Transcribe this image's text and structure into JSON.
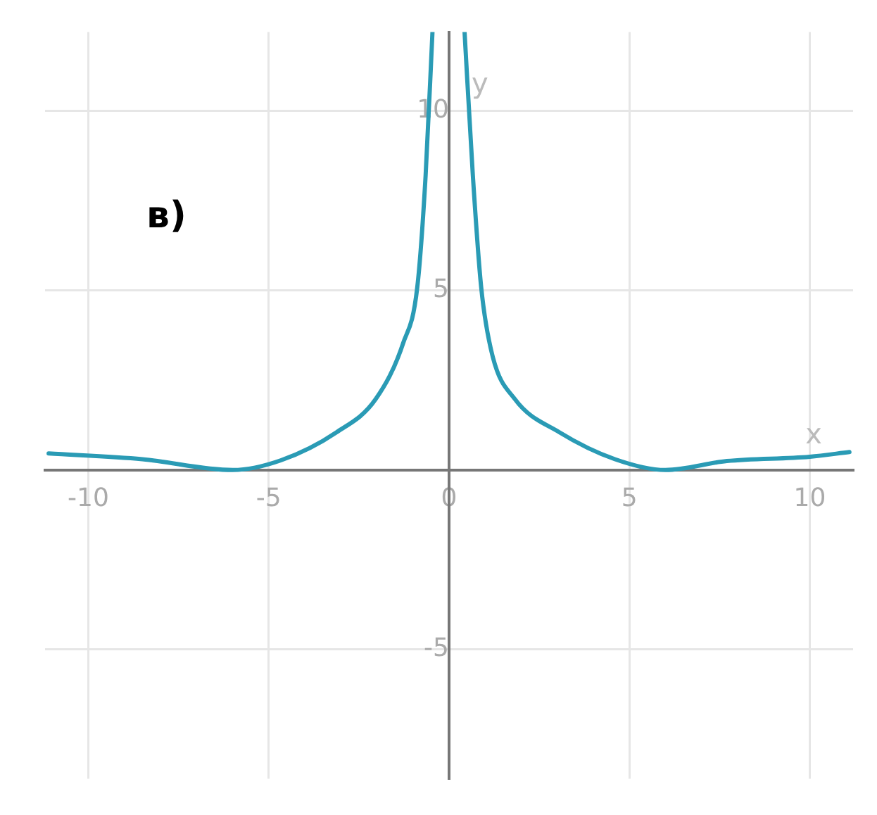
{
  "chart_data": {
    "type": "line",
    "xlabel": "x",
    "ylabel": "y",
    "annotations": [
      "в)"
    ],
    "xlim": [
      -11.2,
      11.2
    ],
    "ylim": [
      -8.6,
      12.2
    ],
    "xticks": [
      -10,
      -5,
      0,
      5,
      10
    ],
    "yticks": [
      -5,
      5,
      10
    ],
    "grid": true,
    "legend": false,
    "marker": "none",
    "line_style": "solid",
    "series": [
      {
        "color": "#2a9bb5",
        "x": [
          -11.1,
          -8.5,
          -6,
          -4.66,
          -3.12,
          -2.03,
          -1.27,
          -0.88,
          -0.65,
          -0.46
        ],
        "values": [
          0.46,
          0.3,
          0,
          0.27,
          1.05,
          1.98,
          3.54,
          5.1,
          8.2,
          12.2
        ]
      },
      {
        "color": "#2a9bb5",
        "x": [
          0.43,
          0.66,
          0.89,
          1.2,
          1.82,
          3.06,
          4.6,
          6,
          7.7,
          10,
          11.1
        ],
        "values": [
          12.2,
          8.2,
          5.1,
          3.2,
          1.98,
          1.05,
          0.3,
          0,
          0.25,
          0.37,
          0.5
        ]
      }
    ]
  }
}
